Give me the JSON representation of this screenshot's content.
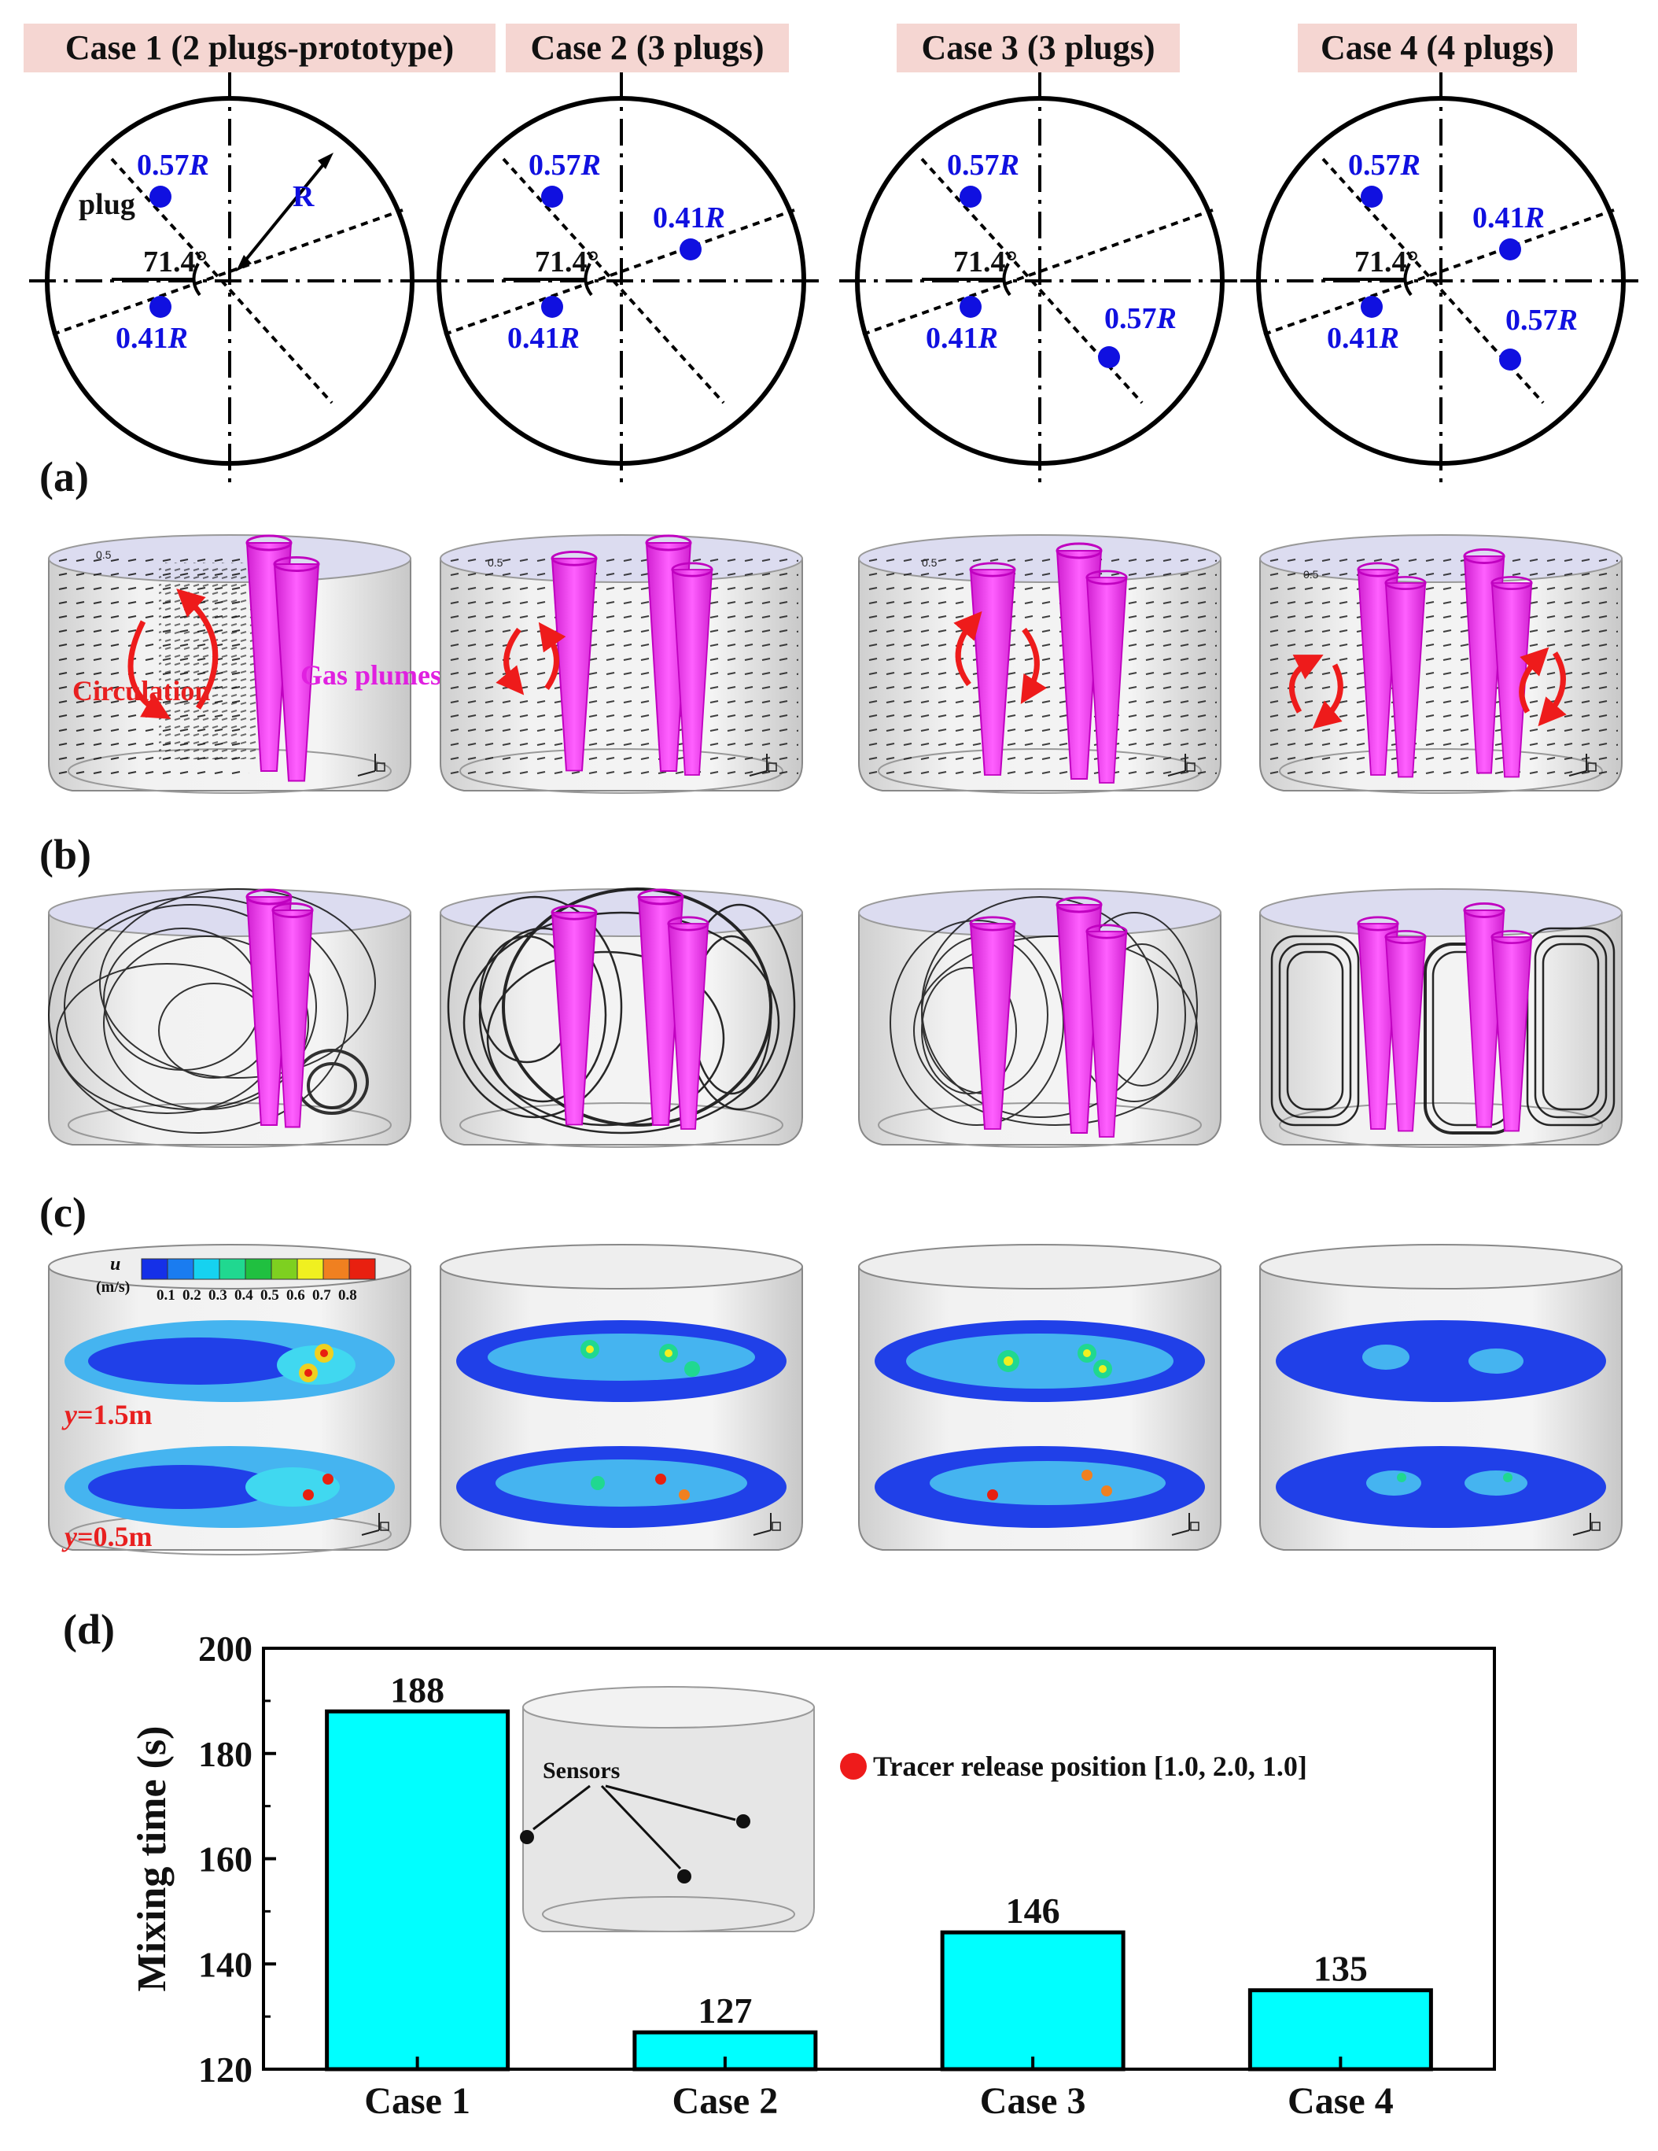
{
  "case_titles": [
    "Case 1 (2 plugs-prototype)",
    "Case 2 (3 plugs)",
    "Case 3 (3 plugs)",
    "Case 4 (4 plugs)"
  ],
  "schematic": {
    "r057": "0.57",
    "r041": "0.41",
    "r_symbol": "R",
    "angle": "71.4°",
    "plug_label": "plug",
    "radius_label": "R"
  },
  "panel_labels": {
    "a": "(a)",
    "b": "(b)",
    "c": "(c)",
    "d": "(d)"
  },
  "panel_a": {
    "scale_value": "0.5",
    "circulation_label": "Circulation",
    "plumes_label": "Gas plumes"
  },
  "panel_c": {
    "colorbar_var": "u",
    "colorbar_unit": "(m/s)",
    "colorbar_ticks": [
      "0.1",
      "0.2",
      "0.3",
      "0.4",
      "0.5",
      "0.6",
      "0.7",
      "0.8"
    ],
    "colorbar_colors": [
      "#1530e8",
      "#1a7cf0",
      "#16d2f0",
      "#20d890",
      "#20c040",
      "#7ed020",
      "#f0f020",
      "#f08020",
      "#e82010"
    ],
    "plane_labels": [
      {
        "var": "y",
        "text": "=1.5m"
      },
      {
        "var": "y",
        "text": "=0.5m"
      }
    ]
  },
  "chart_data": {
    "type": "bar",
    "categories": [
      "Case 1",
      "Case 2",
      "Case 3",
      "Case 4"
    ],
    "values": [
      188,
      127,
      146,
      135
    ],
    "ylabel": "Mixing time (s)",
    "ylim": [
      120,
      200
    ],
    "yticks": [
      120,
      140,
      160,
      180,
      200
    ],
    "bar_color": "#00ffff",
    "inset": {
      "sensors_label": "Sensors",
      "tracer_label": "Tracer release position [1.0, 2.0, 1.0]"
    }
  }
}
